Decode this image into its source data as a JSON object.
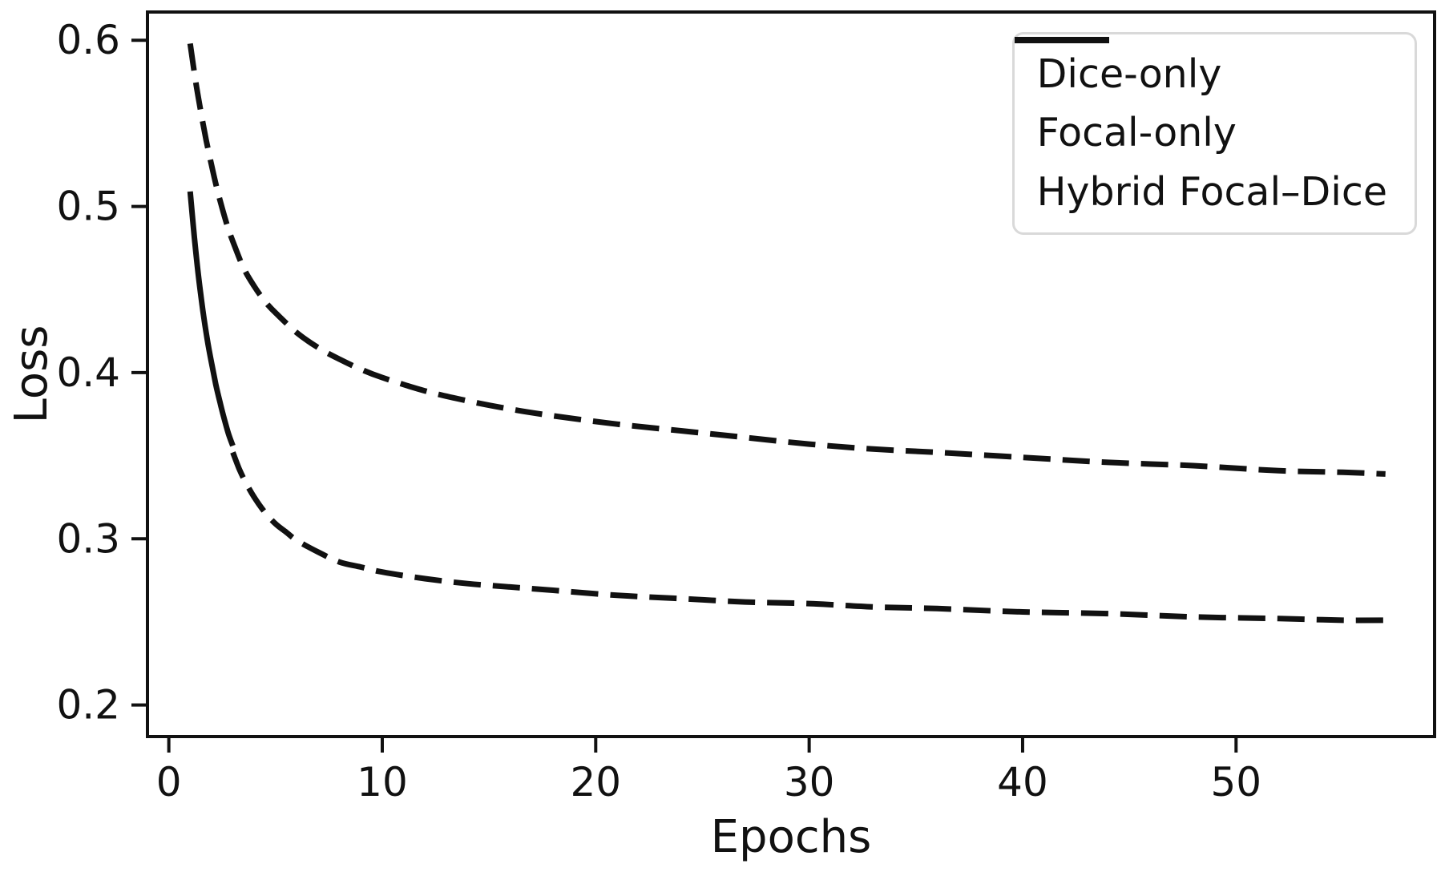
{
  "figure": {
    "background": "#ffffff",
    "ink": "#111111",
    "legend_border": "#d9d9d9"
  },
  "chart_data": {
    "type": "line",
    "title": "",
    "xlabel": "Epochs",
    "ylabel": "Loss",
    "xlim": [
      -1.0,
      59.3
    ],
    "ylim": [
      0.181,
      0.617
    ],
    "xticks": [
      0,
      10,
      20,
      30,
      40,
      50
    ],
    "yticks": [
      0.2,
      0.3,
      0.4,
      0.5,
      0.6
    ],
    "grid": false,
    "legend_position": "upper-right",
    "series": [
      {
        "name": "Dice-only",
        "style": "solid",
        "color": "#111111",
        "x": [
          1,
          1.2,
          1.4,
          1.6,
          1.8,
          2,
          2.2,
          2.4,
          2.6,
          2.8,
          3
        ],
        "values": [
          0.509,
          0.481,
          0.457,
          0.437,
          0.42,
          0.406,
          0.393,
          0.382,
          0.372,
          0.363,
          0.356
        ]
      },
      {
        "name": "Focal-only",
        "style": "dashed",
        "color": "#111111",
        "x": [
          1,
          1.25,
          1.5,
          1.75,
          2,
          2.25,
          2.5,
          2.75,
          3,
          3.5,
          4,
          4.5,
          5,
          6,
          7,
          8,
          9,
          10,
          12,
          14,
          16,
          18,
          21,
          24,
          27,
          30,
          33,
          36,
          40,
          44,
          48,
          52,
          55,
          57
        ],
        "values": [
          0.598,
          0.576,
          0.557,
          0.54,
          0.525,
          0.511,
          0.499,
          0.488,
          0.479,
          0.463,
          0.452,
          0.443,
          0.436,
          0.424,
          0.415,
          0.408,
          0.402,
          0.397,
          0.389,
          0.383,
          0.378,
          0.374,
          0.369,
          0.365,
          0.361,
          0.357,
          0.354,
          0.352,
          0.349,
          0.346,
          0.344,
          0.341,
          0.34,
          0.339
        ]
      },
      {
        "name": "Hybrid Focal–Dice",
        "style": "dashed",
        "color": "#111111",
        "x": [
          3,
          3.3,
          3.6,
          4,
          4.5,
          5,
          5.5,
          6,
          7,
          8,
          9,
          10,
          12,
          14,
          16,
          18,
          21,
          24,
          27,
          30,
          33,
          36,
          40,
          44,
          48,
          52,
          55,
          57
        ],
        "values": [
          0.352,
          0.342,
          0.334,
          0.325,
          0.316,
          0.309,
          0.304,
          0.299,
          0.292,
          0.286,
          0.283,
          0.28,
          0.276,
          0.273,
          0.271,
          0.269,
          0.266,
          0.264,
          0.262,
          0.261,
          0.259,
          0.258,
          0.256,
          0.255,
          0.253,
          0.252,
          0.251,
          0.251
        ]
      }
    ]
  }
}
